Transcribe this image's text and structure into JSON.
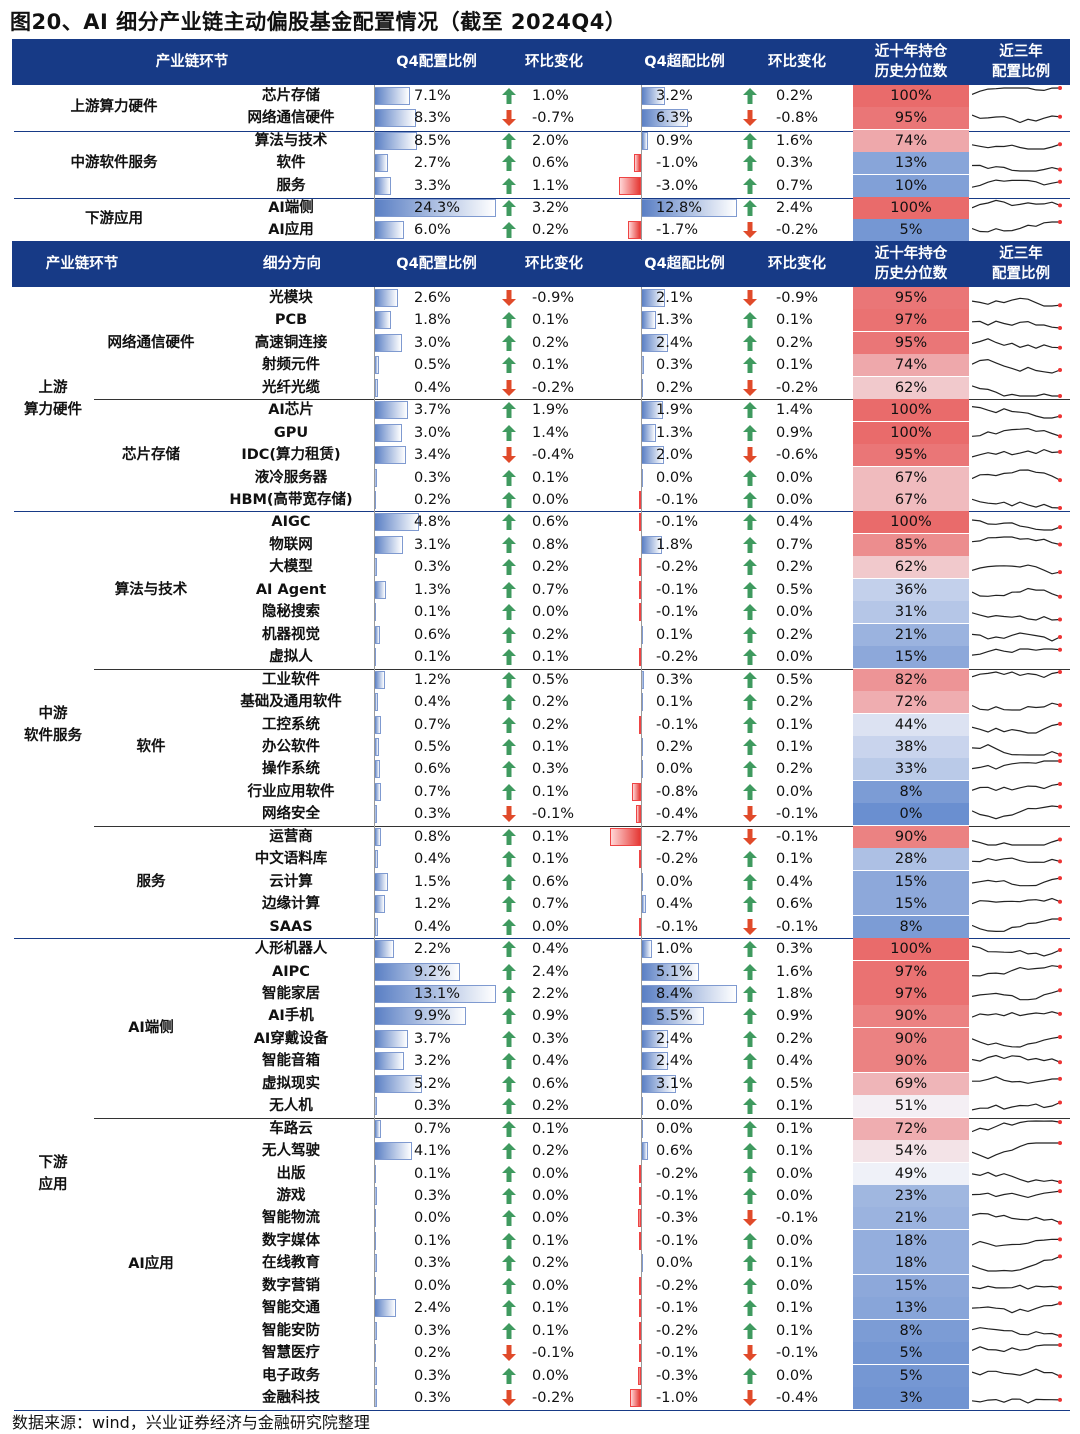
{
  "title": "图20、AI 细分产业链主动偏股基金配置情况（截至 2024Q4）",
  "source": "数据来源：wind，兴业证券经济与金融研究院整理",
  "colors": {
    "header": "#173a86",
    "up": "#3f9a5f",
    "down": "#e04a2a",
    "hot": "#e96b6b",
    "cold": "#6a8fd0"
  },
  "header1": {
    "c1": "产业链环节",
    "c3": "Q4配置比例",
    "c4": "环比变化",
    "c5": "Q4超配比例",
    "c6": "环比变化",
    "c7a": "近十年持仓",
    "c7b": "历史分位数",
    "c8a": "近三年",
    "c8b": "配置比例"
  },
  "header2": {
    "c1": "产业链环节",
    "c2": "细分方向",
    "c3": "Q4配置比例",
    "c4": "环比变化",
    "c5": "Q4超配比例",
    "c6": "环比变化",
    "c7a": "近十年持仓",
    "c7b": "历史分位数",
    "c8a": "近三年",
    "c8b": "配置比例"
  },
  "chart_data": {
    "type": "table",
    "summary": {
      "groups": [
        {
          "name": "上游算力硬件",
          "span": 2
        },
        {
          "name": "中游软件服务",
          "span": 3
        },
        {
          "name": "下游应用",
          "span": 2
        }
      ],
      "rows": [
        {
          "name": "芯片存储",
          "alloc": 7.1,
          "alloc_chg": 1.0,
          "over": 3.2,
          "over_chg": 0.2,
          "pctl": 100
        },
        {
          "name": "网络通信硬件",
          "alloc": 8.3,
          "alloc_chg": -0.7,
          "over": 6.3,
          "over_chg": -0.8,
          "pctl": 95
        },
        {
          "name": "算法与技术",
          "alloc": 8.5,
          "alloc_chg": 2.0,
          "over": 0.9,
          "over_chg": 1.6,
          "pctl": 74
        },
        {
          "name": "软件",
          "alloc": 2.7,
          "alloc_chg": 0.6,
          "over": -1.0,
          "over_chg": 0.3,
          "pctl": 13
        },
        {
          "name": "服务",
          "alloc": 3.3,
          "alloc_chg": 1.1,
          "over": -3.0,
          "over_chg": 0.7,
          "pctl": 10
        },
        {
          "name": "AI端侧",
          "alloc": 24.3,
          "alloc_chg": 3.2,
          "over": 12.8,
          "over_chg": 2.4,
          "pctl": 100
        },
        {
          "name": "AI应用",
          "alloc": 6.0,
          "alloc_chg": 0.2,
          "over": -1.7,
          "over_chg": -0.2,
          "pctl": 5
        }
      ]
    },
    "detail": {
      "groups": [
        {
          "name": "上游\n算力硬件",
          "span": 10
        },
        {
          "name": "中游\n软件服务",
          "span": 19
        },
        {
          "name": "下游\n应用",
          "span": 21
        }
      ],
      "subgroups": [
        {
          "name": "网络通信硬件",
          "span": 5
        },
        {
          "name": "芯片存储",
          "span": 5
        },
        {
          "name": "算法与技术",
          "span": 7
        },
        {
          "name": "软件",
          "span": 7
        },
        {
          "name": "服务",
          "span": 5
        },
        {
          "name": "AI端侧",
          "span": 8
        },
        {
          "name": "AI应用",
          "span": 13
        }
      ],
      "rows": [
        {
          "name": "光模块",
          "alloc": 2.6,
          "alloc_chg": -0.9,
          "over": 2.1,
          "over_chg": -0.9,
          "pctl": 95
        },
        {
          "name": "PCB",
          "alloc": 1.8,
          "alloc_chg": 0.1,
          "over": 1.3,
          "over_chg": 0.1,
          "pctl": 97
        },
        {
          "name": "高速铜连接",
          "alloc": 3.0,
          "alloc_chg": 0.2,
          "over": 2.4,
          "over_chg": 0.2,
          "pctl": 95
        },
        {
          "name": "射频元件",
          "alloc": 0.5,
          "alloc_chg": 0.1,
          "over": 0.3,
          "over_chg": 0.1,
          "pctl": 74
        },
        {
          "name": "光纤光缆",
          "alloc": 0.4,
          "alloc_chg": -0.2,
          "over": 0.2,
          "over_chg": -0.2,
          "pctl": 62
        },
        {
          "name": "AI芯片",
          "alloc": 3.7,
          "alloc_chg": 1.9,
          "over": 1.9,
          "over_chg": 1.4,
          "pctl": 100
        },
        {
          "name": "GPU",
          "alloc": 3.0,
          "alloc_chg": 1.4,
          "over": 1.3,
          "over_chg": 0.9,
          "pctl": 100
        },
        {
          "name": "IDC(算力租赁)",
          "alloc": 3.4,
          "alloc_chg": -0.4,
          "over": 2.0,
          "over_chg": -0.6,
          "pctl": 95
        },
        {
          "name": "液冷服务器",
          "alloc": 0.3,
          "alloc_chg": 0.1,
          "over": 0.0,
          "over_chg": 0.0,
          "pctl": 67
        },
        {
          "name": "HBM(高带宽存储)",
          "alloc": 0.2,
          "alloc_chg": 0.0,
          "over": -0.1,
          "over_chg": 0.0,
          "pctl": 67
        },
        {
          "name": "AIGC",
          "alloc": 4.8,
          "alloc_chg": 0.6,
          "over": -0.1,
          "over_chg": 0.4,
          "pctl": 100
        },
        {
          "name": "物联网",
          "alloc": 3.1,
          "alloc_chg": 0.8,
          "over": 1.8,
          "over_chg": 0.7,
          "pctl": 85
        },
        {
          "name": "大模型",
          "alloc": 0.3,
          "alloc_chg": 0.2,
          "over": -0.2,
          "over_chg": 0.2,
          "pctl": 62
        },
        {
          "name": "AI Agent",
          "alloc": 1.3,
          "alloc_chg": 0.7,
          "over": -0.1,
          "over_chg": 0.5,
          "pctl": 36
        },
        {
          "name": "隐秘搜索",
          "alloc": 0.1,
          "alloc_chg": 0.0,
          "over": -0.1,
          "over_chg": 0.0,
          "pctl": 31
        },
        {
          "name": "机器视觉",
          "alloc": 0.6,
          "alloc_chg": 0.2,
          "over": 0.1,
          "over_chg": 0.2,
          "pctl": 21
        },
        {
          "name": "虚拟人",
          "alloc": 0.1,
          "alloc_chg": 0.1,
          "over": -0.2,
          "over_chg": 0.0,
          "pctl": 15
        },
        {
          "name": "工业软件",
          "alloc": 1.2,
          "alloc_chg": 0.5,
          "over": 0.3,
          "over_chg": 0.5,
          "pctl": 82
        },
        {
          "name": "基础及通用软件",
          "alloc": 0.4,
          "alloc_chg": 0.2,
          "over": 0.1,
          "over_chg": 0.2,
          "pctl": 72
        },
        {
          "name": "工控系统",
          "alloc": 0.7,
          "alloc_chg": 0.2,
          "over": -0.1,
          "over_chg": 0.1,
          "pctl": 44
        },
        {
          "name": "办公软件",
          "alloc": 0.5,
          "alloc_chg": 0.1,
          "over": 0.2,
          "over_chg": 0.1,
          "pctl": 38
        },
        {
          "name": "操作系统",
          "alloc": 0.6,
          "alloc_chg": 0.3,
          "over": 0.0,
          "over_chg": 0.2,
          "pctl": 33
        },
        {
          "name": "行业应用软件",
          "alloc": 0.7,
          "alloc_chg": 0.1,
          "over": -0.8,
          "over_chg": 0.0,
          "pctl": 8
        },
        {
          "name": "网络安全",
          "alloc": 0.3,
          "alloc_chg": -0.1,
          "over": -0.4,
          "over_chg": -0.1,
          "pctl": 0
        },
        {
          "name": "运营商",
          "alloc": 0.8,
          "alloc_chg": 0.1,
          "over": -2.7,
          "over_chg": -0.1,
          "pctl": 90
        },
        {
          "name": "中文语料库",
          "alloc": 0.4,
          "alloc_chg": 0.1,
          "over": -0.2,
          "over_chg": 0.1,
          "pctl": 28
        },
        {
          "name": "云计算",
          "alloc": 1.5,
          "alloc_chg": 0.6,
          "over": 0.0,
          "over_chg": 0.4,
          "pctl": 15
        },
        {
          "name": "边缘计算",
          "alloc": 1.2,
          "alloc_chg": 0.7,
          "over": 0.4,
          "over_chg": 0.6,
          "pctl": 15
        },
        {
          "name": "SAAS",
          "alloc": 0.4,
          "alloc_chg": 0.0,
          "over": -0.1,
          "over_chg": -0.1,
          "pctl": 8
        },
        {
          "name": "人形机器人",
          "alloc": 2.2,
          "alloc_chg": 0.4,
          "over": 1.0,
          "over_chg": 0.3,
          "pctl": 100
        },
        {
          "name": "AIPC",
          "alloc": 9.2,
          "alloc_chg": 2.4,
          "over": 5.1,
          "over_chg": 1.6,
          "pctl": 97
        },
        {
          "name": "智能家居",
          "alloc": 13.1,
          "alloc_chg": 2.2,
          "over": 8.4,
          "over_chg": 1.8,
          "pctl": 97
        },
        {
          "name": "AI手机",
          "alloc": 9.9,
          "alloc_chg": 0.9,
          "over": 5.5,
          "over_chg": 0.9,
          "pctl": 90
        },
        {
          "name": "AI穿戴设备",
          "alloc": 3.7,
          "alloc_chg": 0.3,
          "over": 2.4,
          "over_chg": 0.2,
          "pctl": 90
        },
        {
          "name": "智能音箱",
          "alloc": 3.2,
          "alloc_chg": 0.4,
          "over": 2.4,
          "over_chg": 0.4,
          "pctl": 90
        },
        {
          "name": "虚拟现实",
          "alloc": 5.2,
          "alloc_chg": 0.6,
          "over": 3.1,
          "over_chg": 0.5,
          "pctl": 69
        },
        {
          "name": "无人机",
          "alloc": 0.3,
          "alloc_chg": 0.2,
          "over": 0.0,
          "over_chg": 0.1,
          "pctl": 51
        },
        {
          "name": "车路云",
          "alloc": 0.7,
          "alloc_chg": 0.1,
          "over": 0.0,
          "over_chg": 0.1,
          "pctl": 72
        },
        {
          "name": "无人驾驶",
          "alloc": 4.1,
          "alloc_chg": 0.2,
          "over": 0.6,
          "over_chg": 0.1,
          "pctl": 54
        },
        {
          "name": "出版",
          "alloc": 0.1,
          "alloc_chg": 0.0,
          "over": -0.2,
          "over_chg": 0.0,
          "pctl": 49
        },
        {
          "name": "游戏",
          "alloc": 0.3,
          "alloc_chg": 0.0,
          "over": -0.1,
          "over_chg": 0.0,
          "pctl": 23
        },
        {
          "name": "智能物流",
          "alloc": 0.0,
          "alloc_chg": 0.0,
          "over": -0.3,
          "over_chg": -0.1,
          "pctl": 21
        },
        {
          "name": "数字媒体",
          "alloc": 0.1,
          "alloc_chg": 0.1,
          "over": -0.1,
          "over_chg": 0.0,
          "pctl": 18
        },
        {
          "name": "在线教育",
          "alloc": 0.3,
          "alloc_chg": 0.2,
          "over": 0.0,
          "over_chg": 0.1,
          "pctl": 18
        },
        {
          "name": "数字营销",
          "alloc": 0.0,
          "alloc_chg": 0.0,
          "over": -0.2,
          "over_chg": 0.0,
          "pctl": 15
        },
        {
          "name": "智能交通",
          "alloc": 2.4,
          "alloc_chg": 0.1,
          "over": -0.1,
          "over_chg": 0.1,
          "pctl": 13
        },
        {
          "name": "智能安防",
          "alloc": 0.3,
          "alloc_chg": 0.1,
          "over": -0.2,
          "over_chg": 0.1,
          "pctl": 8
        },
        {
          "name": "智慧医疗",
          "alloc": 0.2,
          "alloc_chg": -0.1,
          "over": -0.1,
          "over_chg": -0.1,
          "pctl": 5
        },
        {
          "name": "电子政务",
          "alloc": 0.3,
          "alloc_chg": 0.0,
          "over": -0.3,
          "over_chg": 0.0,
          "pctl": 5
        },
        {
          "name": "金融科技",
          "alloc": 0.3,
          "alloc_chg": -0.2,
          "over": -1.0,
          "over_chg": -0.4,
          "pctl": 3
        }
      ]
    }
  }
}
